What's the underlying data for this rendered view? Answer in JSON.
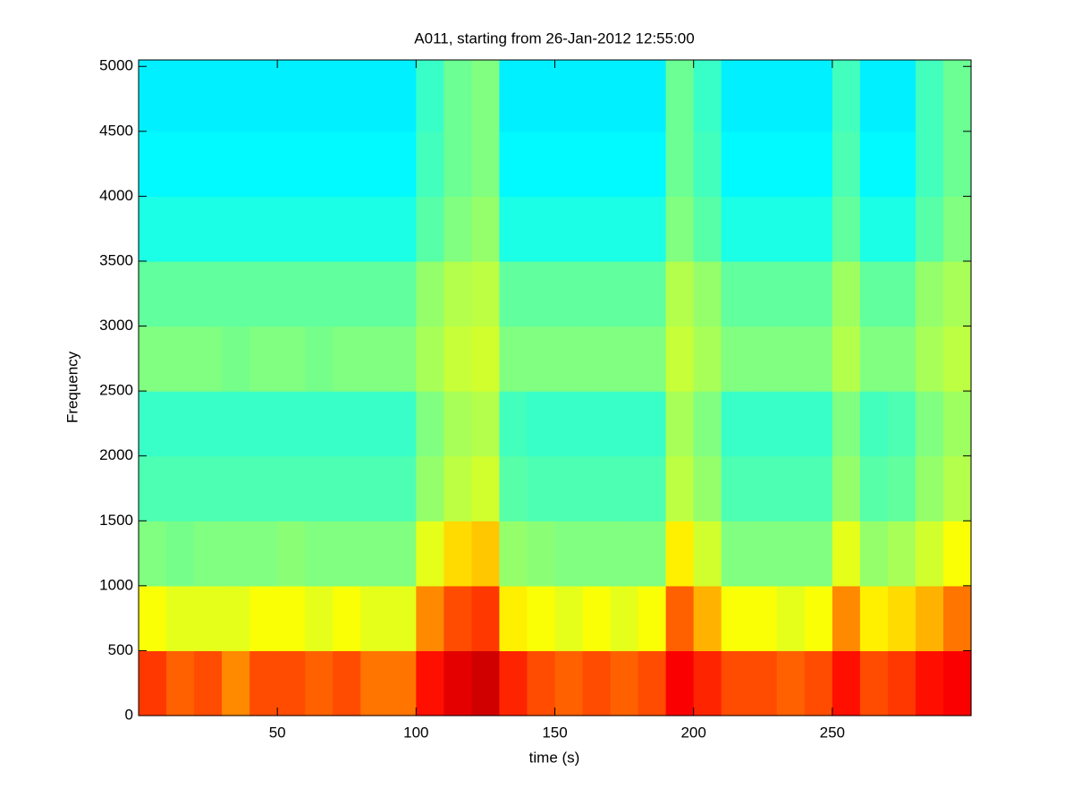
{
  "chart_data": {
    "type": "heatmap",
    "title": "A011, starting from 26-Jan-2012 12:55:00",
    "xlabel": "time (s)",
    "ylabel": "Frequency",
    "colormap": "jet",
    "clim": [
      0,
      1
    ],
    "x_edges": [
      0,
      10,
      20,
      30,
      40,
      50,
      60,
      70,
      80,
      90,
      100,
      110,
      120,
      130,
      140,
      150,
      160,
      170,
      180,
      190,
      200,
      210,
      220,
      230,
      240,
      250,
      260,
      270,
      280,
      290,
      300
    ],
    "y_edges": [
      0,
      500,
      1000,
      1500,
      2000,
      2500,
      3000,
      3500,
      4000,
      4500,
      5050
    ],
    "z": [
      [
        0.82,
        0.78,
        0.8,
        0.74,
        0.8,
        0.8,
        0.78,
        0.8,
        0.76,
        0.76,
        0.86,
        0.9,
        0.92,
        0.84,
        0.8,
        0.78,
        0.8,
        0.78,
        0.8,
        0.88,
        0.84,
        0.8,
        0.8,
        0.78,
        0.8,
        0.86,
        0.8,
        0.82,
        0.86,
        0.88
      ],
      [
        0.62,
        0.6,
        0.6,
        0.6,
        0.62,
        0.62,
        0.6,
        0.62,
        0.6,
        0.6,
        0.74,
        0.8,
        0.82,
        0.64,
        0.62,
        0.6,
        0.62,
        0.6,
        0.62,
        0.78,
        0.7,
        0.62,
        0.62,
        0.6,
        0.62,
        0.74,
        0.64,
        0.66,
        0.7,
        0.76
      ],
      [
        0.5,
        0.49,
        0.5,
        0.5,
        0.5,
        0.51,
        0.5,
        0.5,
        0.5,
        0.5,
        0.6,
        0.66,
        0.68,
        0.52,
        0.51,
        0.5,
        0.5,
        0.5,
        0.5,
        0.64,
        0.58,
        0.5,
        0.5,
        0.5,
        0.5,
        0.6,
        0.52,
        0.54,
        0.58,
        0.62
      ],
      [
        0.45,
        0.45,
        0.45,
        0.45,
        0.45,
        0.45,
        0.45,
        0.45,
        0.45,
        0.45,
        0.52,
        0.56,
        0.58,
        0.46,
        0.45,
        0.45,
        0.45,
        0.45,
        0.45,
        0.56,
        0.52,
        0.45,
        0.45,
        0.45,
        0.45,
        0.52,
        0.46,
        0.47,
        0.52,
        0.55
      ],
      [
        0.43,
        0.43,
        0.43,
        0.43,
        0.43,
        0.43,
        0.43,
        0.43,
        0.43,
        0.43,
        0.5,
        0.54,
        0.55,
        0.44,
        0.43,
        0.43,
        0.43,
        0.43,
        0.43,
        0.54,
        0.5,
        0.43,
        0.43,
        0.43,
        0.43,
        0.5,
        0.44,
        0.45,
        0.5,
        0.53
      ],
      [
        0.5,
        0.5,
        0.5,
        0.49,
        0.5,
        0.5,
        0.49,
        0.5,
        0.5,
        0.5,
        0.54,
        0.57,
        0.58,
        0.5,
        0.5,
        0.5,
        0.5,
        0.5,
        0.5,
        0.57,
        0.54,
        0.5,
        0.5,
        0.5,
        0.5,
        0.55,
        0.5,
        0.5,
        0.54,
        0.56
      ],
      [
        0.47,
        0.47,
        0.47,
        0.47,
        0.47,
        0.47,
        0.47,
        0.47,
        0.47,
        0.47,
        0.52,
        0.55,
        0.56,
        0.47,
        0.47,
        0.47,
        0.47,
        0.47,
        0.47,
        0.55,
        0.52,
        0.47,
        0.47,
        0.47,
        0.47,
        0.53,
        0.47,
        0.47,
        0.52,
        0.54
      ],
      [
        0.4,
        0.4,
        0.4,
        0.4,
        0.4,
        0.4,
        0.4,
        0.4,
        0.4,
        0.4,
        0.46,
        0.5,
        0.52,
        0.4,
        0.4,
        0.4,
        0.4,
        0.4,
        0.4,
        0.5,
        0.46,
        0.4,
        0.4,
        0.4,
        0.4,
        0.47,
        0.4,
        0.4,
        0.46,
        0.5
      ],
      [
        0.37,
        0.37,
        0.37,
        0.37,
        0.37,
        0.37,
        0.37,
        0.37,
        0.37,
        0.37,
        0.44,
        0.48,
        0.5,
        0.37,
        0.37,
        0.37,
        0.37,
        0.37,
        0.37,
        0.48,
        0.44,
        0.37,
        0.37,
        0.37,
        0.37,
        0.45,
        0.37,
        0.37,
        0.44,
        0.48
      ],
      [
        0.36,
        0.36,
        0.36,
        0.36,
        0.36,
        0.36,
        0.36,
        0.36,
        0.36,
        0.36,
        0.43,
        0.48,
        0.5,
        0.36,
        0.36,
        0.36,
        0.36,
        0.36,
        0.36,
        0.48,
        0.43,
        0.36,
        0.36,
        0.36,
        0.36,
        0.44,
        0.36,
        0.36,
        0.44,
        0.48
      ]
    ],
    "xlim": [
      0,
      300
    ],
    "ylim": [
      0,
      5050
    ],
    "xticks": [
      50,
      100,
      150,
      200,
      250
    ],
    "yticks": [
      0,
      500,
      1000,
      1500,
      2000,
      2500,
      3000,
      3500,
      4000,
      4500,
      5000
    ]
  }
}
